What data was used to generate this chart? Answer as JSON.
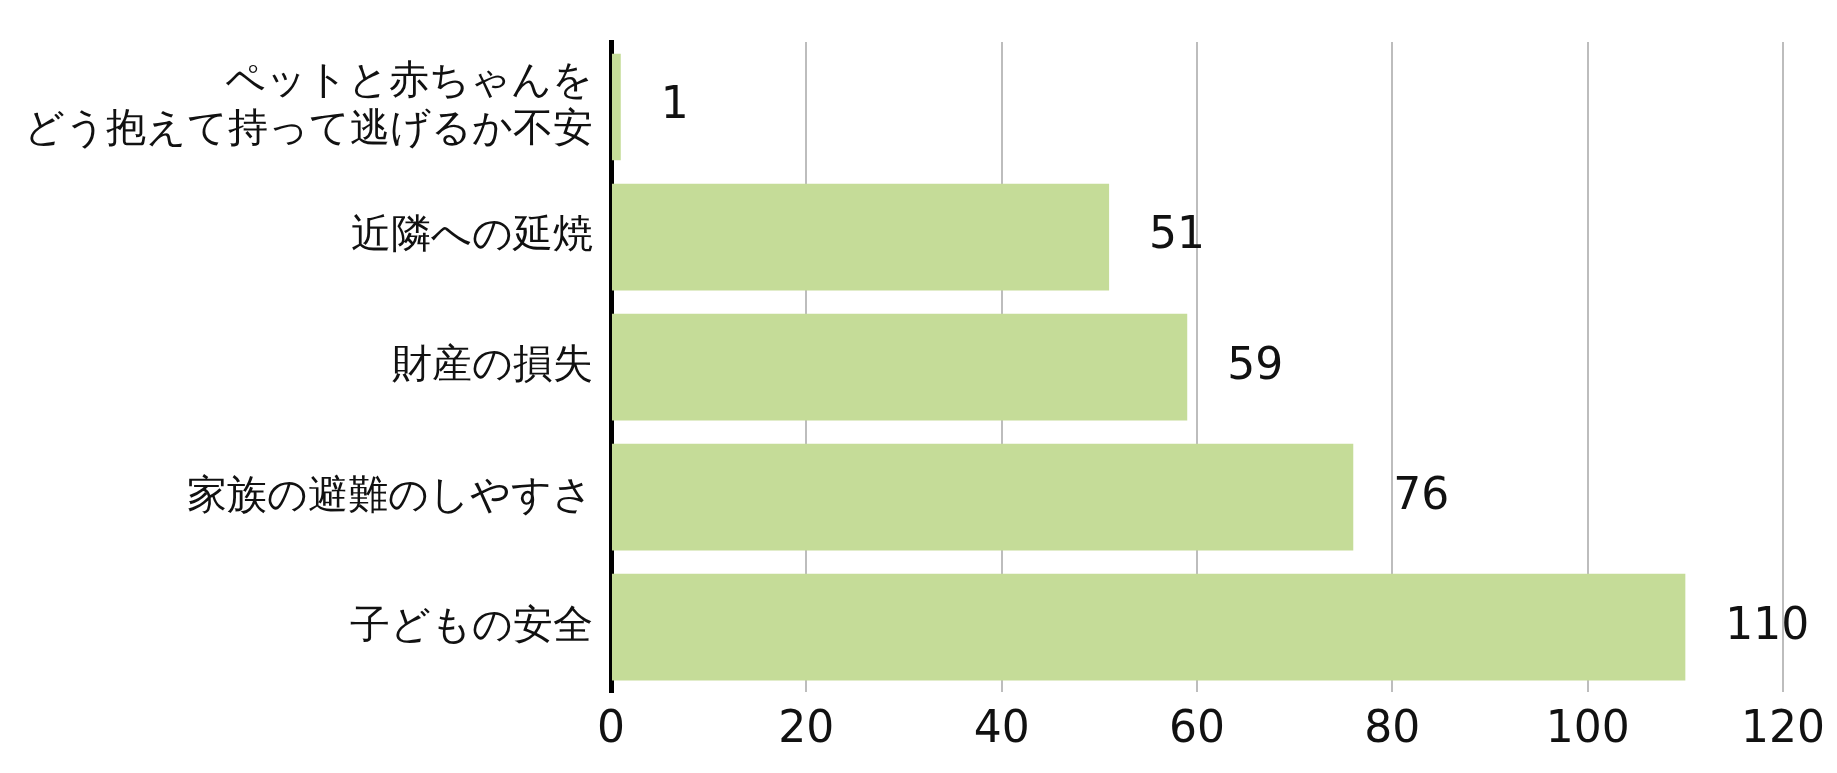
{
  "chart_data": {
    "type": "bar",
    "orientation": "horizontal",
    "categories": [
      "ペットと赤ちゃんをどう抱えて持って逃げるか不安",
      "近隣への延焼",
      "財産の損失",
      "家族の避難のしやすさ",
      "子どもの安全"
    ],
    "values": [
      1,
      51,
      59,
      76,
      110
    ],
    "color": "#c5dc98",
    "xlim": [
      0,
      120
    ],
    "xticks": [
      0,
      20,
      40,
      60,
      80,
      100,
      120
    ],
    "grid": "x",
    "data_labels": true,
    "legend": false
  }
}
